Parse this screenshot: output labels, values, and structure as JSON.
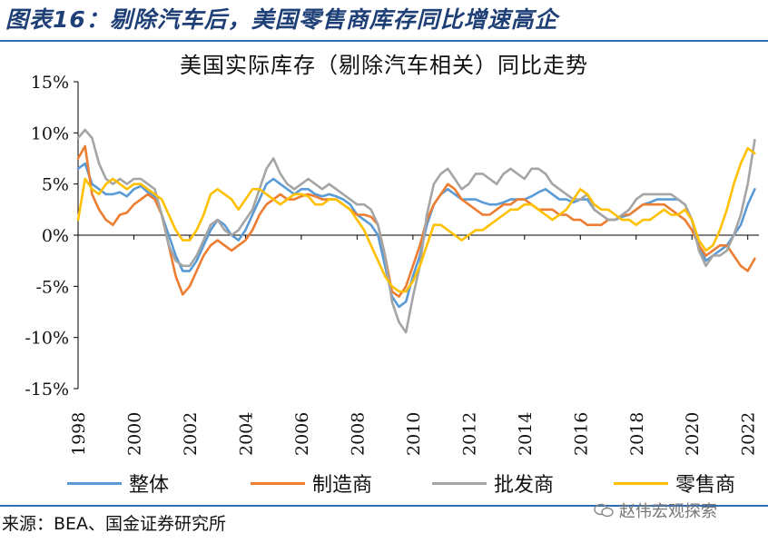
{
  "figure_title": "图表16：剔除汽车后，美国零售商库存同比增速高企",
  "source": "来源：BEA、国金证券研究所",
  "watermark": "赵伟宏观探索",
  "colors": {
    "accent": "#2f6db3",
    "整体": "#5b9bd5",
    "制造商": "#ed7d31",
    "批发商": "#a5a5a5",
    "零售商": "#ffc000"
  },
  "chart_data": {
    "type": "line",
    "title": "美国实际库存（剔除汽车相关）同比走势",
    "xlabel": "",
    "ylabel": "",
    "xlim": [
      1998,
      2022.4
    ],
    "ylim": [
      -15,
      15
    ],
    "x_ticks": [
      "1998",
      "2000",
      "2002",
      "2004",
      "2006",
      "2008",
      "2010",
      "2012",
      "2014",
      "2016",
      "2018",
      "2020",
      "2022"
    ],
    "y_ticks": [
      15,
      10,
      5,
      0,
      -5,
      -10,
      -15
    ],
    "y_tick_labels": [
      "15%",
      "10%",
      "5%",
      "0%",
      "-5%",
      "-10%",
      "-15%"
    ],
    "grid": false,
    "legend_position": "bottom",
    "x": [
      1998.0,
      1998.25,
      1998.5,
      1998.75,
      1999.0,
      1999.25,
      1999.5,
      1999.75,
      2000.0,
      2000.25,
      2000.5,
      2000.75,
      2001.0,
      2001.25,
      2001.5,
      2001.75,
      2002.0,
      2002.25,
      2002.5,
      2002.75,
      2003.0,
      2003.25,
      2003.5,
      2003.75,
      2004.0,
      2004.25,
      2004.5,
      2004.75,
      2005.0,
      2005.25,
      2005.5,
      2005.75,
      2006.0,
      2006.25,
      2006.5,
      2006.75,
      2007.0,
      2007.25,
      2007.5,
      2007.75,
      2008.0,
      2008.25,
      2008.5,
      2008.75,
      2009.0,
      2009.25,
      2009.5,
      2009.75,
      2010.0,
      2010.25,
      2010.5,
      2010.75,
      2011.0,
      2011.25,
      2011.5,
      2011.75,
      2012.0,
      2012.25,
      2012.5,
      2012.75,
      2013.0,
      2013.25,
      2013.5,
      2013.75,
      2014.0,
      2014.25,
      2014.5,
      2014.75,
      2015.0,
      2015.25,
      2015.5,
      2015.75,
      2016.0,
      2016.25,
      2016.5,
      2016.75,
      2017.0,
      2017.25,
      2017.5,
      2017.75,
      2018.0,
      2018.25,
      2018.5,
      2018.75,
      2019.0,
      2019.25,
      2019.5,
      2019.75,
      2020.0,
      2020.25,
      2020.5,
      2020.75,
      2021.0,
      2021.25,
      2021.5,
      2021.75,
      2022.0,
      2022.25
    ],
    "series": [
      {
        "name": "整体",
        "values": [
          6.5,
          7.0,
          5.0,
          4.5,
          4.0,
          4.0,
          4.2,
          3.8,
          4.5,
          4.8,
          4.2,
          3.8,
          2.0,
          0.0,
          -2.0,
          -3.5,
          -3.5,
          -2.5,
          -1.0,
          0.5,
          1.5,
          1.0,
          0.0,
          -0.5,
          0.5,
          2.0,
          3.5,
          5.0,
          5.5,
          5.0,
          4.5,
          4.0,
          4.5,
          4.5,
          4.0,
          3.8,
          4.0,
          3.8,
          3.5,
          3.0,
          2.0,
          1.5,
          1.0,
          0.0,
          -3.0,
          -6.0,
          -7.0,
          -6.5,
          -4.0,
          -2.0,
          1.0,
          3.0,
          4.0,
          4.5,
          4.0,
          3.5,
          3.5,
          3.5,
          3.2,
          3.0,
          3.0,
          3.2,
          3.5,
          3.5,
          3.5,
          3.8,
          4.2,
          4.5,
          4.0,
          3.5,
          3.5,
          3.2,
          3.5,
          3.5,
          2.5,
          2.0,
          1.5,
          1.5,
          1.8,
          2.0,
          2.5,
          3.0,
          3.2,
          3.5,
          3.5,
          3.5,
          3.5,
          3.0,
          1.5,
          -1.0,
          -2.5,
          -2.0,
          -1.5,
          -1.0,
          0.0,
          1.0,
          3.0,
          4.5
        ]
      },
      {
        "name": "制造商",
        "values": [
          7.5,
          8.7,
          4.0,
          2.5,
          1.5,
          1.0,
          2.0,
          2.2,
          3.0,
          3.5,
          4.0,
          3.5,
          2.0,
          -1.0,
          -4.0,
          -5.8,
          -5.0,
          -3.5,
          -2.0,
          -1.0,
          -0.5,
          -1.0,
          -1.5,
          -1.0,
          -0.5,
          0.5,
          2.0,
          3.0,
          3.5,
          4.0,
          3.5,
          3.5,
          3.8,
          4.0,
          3.8,
          3.5,
          3.5,
          3.5,
          3.0,
          2.5,
          2.0,
          2.0,
          1.8,
          1.0,
          -2.0,
          -5.5,
          -6.0,
          -5.0,
          -3.0,
          -1.0,
          1.5,
          3.0,
          4.0,
          5.0,
          4.5,
          3.5,
          3.0,
          2.5,
          2.0,
          2.0,
          2.5,
          3.0,
          3.0,
          3.5,
          3.5,
          3.0,
          2.5,
          2.5,
          2.5,
          2.0,
          2.0,
          1.5,
          1.5,
          1.0,
          1.0,
          1.0,
          1.5,
          1.5,
          2.0,
          2.0,
          2.5,
          3.0,
          3.0,
          3.0,
          3.0,
          2.5,
          2.0,
          1.5,
          0.5,
          -1.0,
          -2.0,
          -1.5,
          -1.0,
          -1.0,
          -2.0,
          -3.0,
          -3.5,
          -2.3
        ]
      },
      {
        "name": "批发商",
        "values": [
          9.5,
          10.3,
          9.5,
          7.0,
          5.5,
          5.0,
          5.5,
          5.0,
          5.5,
          5.5,
          5.0,
          4.5,
          2.0,
          -1.0,
          -2.5,
          -3.0,
          -3.0,
          -2.0,
          -0.5,
          1.0,
          1.5,
          0.5,
          0.0,
          0.5,
          1.5,
          2.5,
          4.5,
          6.5,
          7.5,
          6.0,
          5.0,
          4.5,
          5.0,
          5.5,
          5.0,
          4.5,
          5.0,
          4.5,
          4.0,
          3.5,
          3.0,
          3.0,
          2.5,
          1.0,
          -2.0,
          -6.5,
          -8.5,
          -9.5,
          -6.0,
          -3.0,
          2.0,
          5.0,
          6.0,
          6.5,
          5.5,
          4.5,
          5.0,
          6.0,
          6.0,
          5.5,
          5.0,
          6.0,
          6.5,
          6.0,
          5.5,
          6.5,
          6.5,
          6.0,
          5.0,
          4.5,
          4.0,
          3.5,
          3.5,
          4.0,
          2.5,
          2.0,
          1.5,
          1.5,
          2.0,
          2.5,
          3.5,
          4.0,
          4.0,
          4.0,
          4.0,
          4.0,
          3.5,
          3.0,
          1.5,
          -1.5,
          -3.0,
          -2.0,
          -2.0,
          -1.5,
          0.0,
          2.0,
          5.0,
          9.3
        ]
      },
      {
        "name": "零售商",
        "values": [
          1.5,
          5.5,
          4.5,
          4.0,
          5.0,
          5.5,
          5.0,
          4.5,
          5.0,
          5.0,
          4.5,
          4.0,
          3.5,
          2.0,
          0.5,
          -0.5,
          -0.5,
          0.5,
          2.0,
          4.0,
          4.5,
          4.0,
          3.5,
          2.5,
          3.5,
          4.5,
          4.5,
          4.0,
          3.5,
          3.0,
          3.5,
          4.0,
          4.0,
          3.8,
          3.0,
          3.0,
          3.5,
          3.5,
          3.0,
          2.5,
          1.5,
          0.5,
          -1.0,
          -2.5,
          -4.0,
          -5.0,
          -5.5,
          -5.5,
          -4.5,
          -3.0,
          -1.0,
          1.0,
          1.0,
          0.5,
          0.0,
          -0.5,
          0.0,
          0.5,
          0.5,
          1.0,
          1.5,
          2.0,
          2.5,
          2.5,
          3.0,
          3.0,
          2.5,
          2.0,
          1.5,
          2.0,
          2.5,
          3.5,
          4.5,
          4.0,
          3.0,
          2.5,
          2.5,
          2.0,
          1.5,
          1.5,
          1.0,
          1.5,
          1.5,
          2.0,
          2.5,
          2.0,
          2.0,
          2.5,
          1.5,
          -0.5,
          -1.5,
          -1.0,
          0.5,
          2.5,
          5.0,
          7.0,
          8.5,
          8.0
        ]
      }
    ]
  }
}
